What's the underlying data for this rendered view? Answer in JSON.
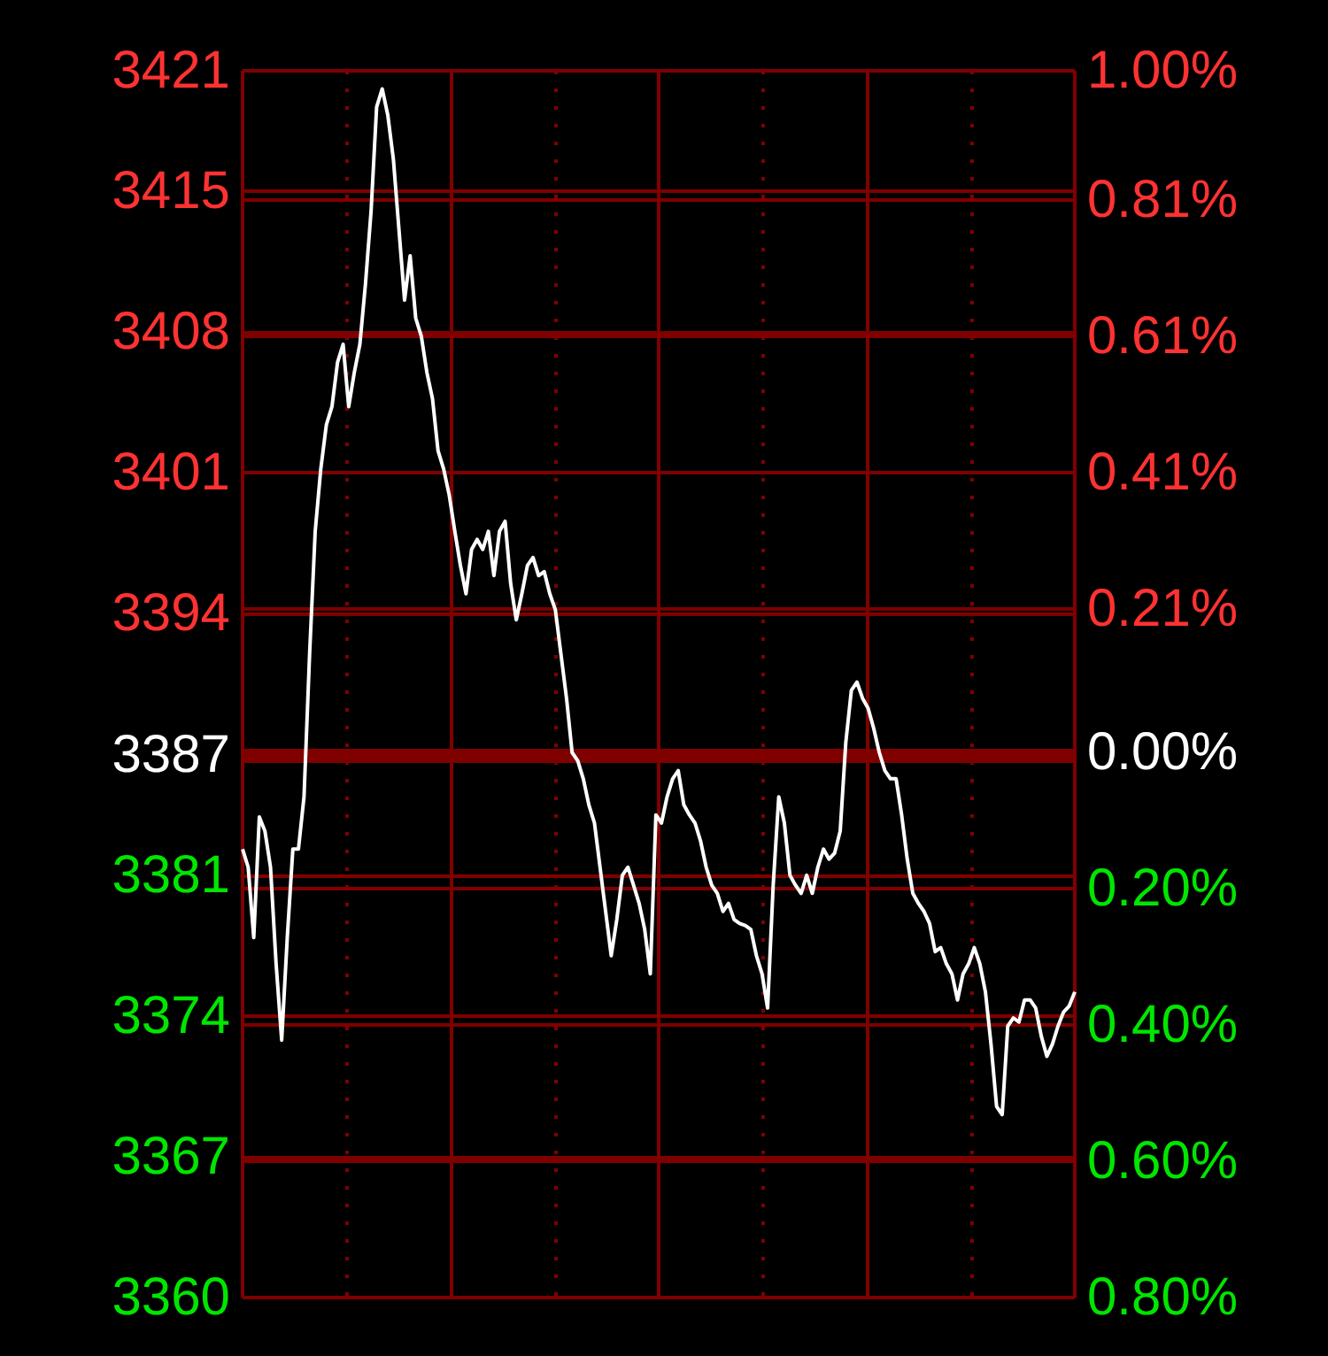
{
  "chart_data": {
    "type": "line",
    "categories": [
      null,
      null,
      null,
      null,
      null,
      null,
      null,
      null,
      null,
      null,
      null,
      null,
      null,
      null,
      null,
      null,
      null,
      null,
      null,
      null,
      null,
      null,
      null,
      null,
      null,
      null,
      null,
      null,
      null,
      null,
      null,
      null,
      null,
      null,
      null,
      null,
      null,
      null,
      null,
      null,
      null,
      null,
      null,
      null,
      null,
      null,
      null,
      null,
      null,
      null,
      null,
      null,
      null,
      null,
      null,
      null,
      null,
      null,
      null,
      null,
      null,
      null,
      null,
      null,
      null,
      null,
      null,
      null,
      null,
      null,
      null,
      null,
      null,
      null,
      null,
      null,
      null,
      null,
      null,
      null,
      null,
      null,
      null,
      null,
      null,
      null,
      null,
      null,
      null,
      null,
      null,
      null,
      null,
      null,
      null,
      null,
      null,
      null,
      null,
      null,
      null,
      null,
      null,
      null,
      null,
      null,
      null,
      null,
      null,
      null,
      null,
      null,
      null,
      null,
      null,
      null,
      null,
      null,
      null,
      null,
      null,
      null,
      null,
      null,
      null,
      null,
      null,
      null,
      null,
      null,
      null,
      null,
      null,
      null,
      null,
      null,
      null,
      null,
      null,
      null,
      null,
      null,
      null,
      null,
      null,
      null,
      null,
      null,
      null,
      null
    ],
    "series": [
      {
        "color": "#ffffff",
        "values": [
          3382.3,
          3381.4,
          3377.9,
          3383.9,
          3383.2,
          3381.4,
          3376.6,
          3372.8,
          3377.9,
          3382.3,
          3382.3,
          3384.9,
          3392.0,
          3398.1,
          3401.2,
          3403.4,
          3404.3,
          3406.5,
          3407.4,
          3404.3,
          3406.0,
          3407.4,
          3410.4,
          3414.0,
          3419.2,
          3420.1,
          3418.8,
          3416.6,
          3413.1,
          3409.6,
          3411.8,
          3408.7,
          3407.8,
          3406.0,
          3404.7,
          3402.1,
          3401.2,
          3399.9,
          3398.1,
          3396.4,
          3395.0,
          3397.2,
          3397.7,
          3397.2,
          3398.1,
          3395.9,
          3398.1,
          3398.6,
          3395.5,
          3393.7,
          3395.0,
          3396.4,
          3396.8,
          3395.9,
          3396.1,
          3395.0,
          3394.2,
          3392.0,
          3389.8,
          3387.1,
          3386.7,
          3385.8,
          3384.5,
          3383.6,
          3381.4,
          3379.2,
          3377.0,
          3378.8,
          3381.0,
          3381.4,
          3380.5,
          3379.6,
          3378.3,
          3376.1,
          3384.0,
          3383.6,
          3384.9,
          3385.8,
          3386.2,
          3384.5,
          3384.0,
          3383.6,
          3382.7,
          3381.4,
          3380.5,
          3380.1,
          3379.2,
          3379.6,
          3378.8,
          3378.6,
          3378.5,
          3378.3,
          3377.0,
          3376.1,
          3374.4,
          3380.5,
          3384.9,
          3383.6,
          3381.0,
          3380.5,
          3380.1,
          3381.0,
          3380.1,
          3381.4,
          3382.3,
          3381.8,
          3382.1,
          3383.2,
          3387.6,
          3390.2,
          3390.6,
          3389.8,
          3389.3,
          3388.3,
          3387.1,
          3386.2,
          3385.8,
          3385.8,
          3384.0,
          3381.8,
          3380.1,
          3379.6,
          3379.2,
          3378.6,
          3377.2,
          3377.4,
          3376.6,
          3376.1,
          3374.8,
          3376.1,
          3376.6,
          3377.4,
          3376.6,
          3375.2,
          3372.6,
          3369.5,
          3369.1,
          3373.5,
          3373.9,
          3373.7,
          3374.8,
          3374.8,
          3374.4,
          3373.0,
          3372.0,
          3372.6,
          3373.5,
          3374.2,
          3374.5,
          3375.2
        ]
      }
    ],
    "ylim": [
      3360,
      3421
    ],
    "yticks": [
      3360,
      3367,
      3374,
      3381,
      3387,
      3394,
      3401,
      3408,
      3415,
      3421
    ],
    "y2lim": [
      -0.8,
      1.0
    ],
    "y2ticks": [
      {
        "value": -0.8,
        "label": "0.80%"
      },
      {
        "value": -0.6,
        "label": "0.60%"
      },
      {
        "value": -0.4,
        "label": "0.40%"
      },
      {
        "value": -0.2,
        "label": "0.20%"
      },
      {
        "value": 0,
        "label": "0.00%"
      },
      {
        "value": 0.21,
        "label": "0.21%"
      },
      {
        "value": 0.41,
        "label": "0.41%"
      },
      {
        "value": 0.61,
        "label": "0.61%"
      },
      {
        "value": 0.81,
        "label": "0.81%"
      },
      {
        "value": 1.0,
        "label": "1.00%"
      }
    ],
    "ref_lines": [
      {
        "axis": "y",
        "value": 3387,
        "color": "#800000"
      }
    ],
    "grid": true,
    "tick_labels": "y",
    "marker": "none",
    "line_style": "solid"
  }
}
